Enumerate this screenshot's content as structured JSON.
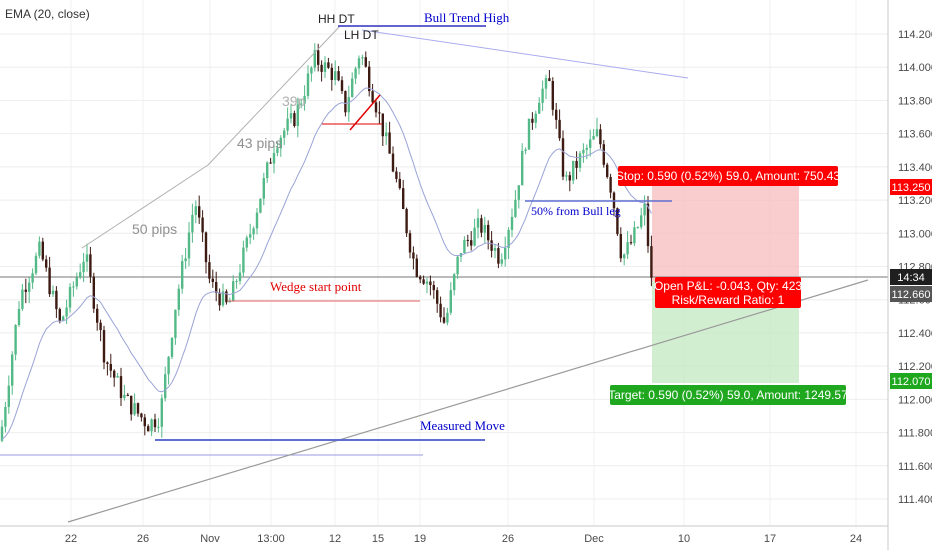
{
  "indicator_label": "EMA (20, close)",
  "chart_data": {
    "type": "candlestick",
    "instrument_hint": "",
    "y_axis": {
      "ticks": [
        "114.200",
        "114.000",
        "113.800",
        "113.600",
        "113.400",
        "113.200",
        "113.000",
        "112.800",
        "112.600",
        "112.400",
        "112.200",
        "112.000",
        "111.800",
        "111.600",
        "111.400"
      ],
      "ylim": [
        111.2,
        114.35
      ]
    },
    "x_axis": {
      "ticks": [
        "22",
        "26",
        "Nov",
        "13:00",
        "12",
        "15",
        "19",
        "26",
        "Dec",
        "10",
        "17",
        "24"
      ]
    },
    "price_badges": {
      "stop_price": "113.250",
      "time": "14:34",
      "current_price": "112.660",
      "target_price": "112.070"
    },
    "position": {
      "entry": 112.66,
      "stop": 113.25,
      "target": 112.07,
      "stop_label": "Stop: 0.590 (0.52%) 59.0, Amount: 750.43",
      "pnl_label": "Open P&L: -0.043, Qty: 423",
      "rr_label": "Risk/Reward Ratio: 1",
      "target_label": "Target: 0.590 (0.52%) 59.0, Amount: 1249.57"
    },
    "annotations": {
      "hh_dt": "HH DT",
      "lh_dt": "LH DT",
      "bull_trend_high": "Bull Trend High",
      "pips_39": "39p",
      "pips_43": "43 pips",
      "pips_50": "50 pips",
      "wedge_start": "Wedge start point",
      "fifty_pct": "50% from Bull leg",
      "measured_move": "Measured Move"
    },
    "colors": {
      "up_candle": "#53b987",
      "down_candle": "#3d1a12",
      "ema": "#9aa3d6",
      "stop_zone": "#f7bcbc",
      "target_zone": "#c3e8c0",
      "red_label": "#ff0000",
      "green_label": "#1fa81f",
      "annotation_blue": "#0000cc",
      "annotation_red": "#e00000"
    },
    "grid": true
  }
}
